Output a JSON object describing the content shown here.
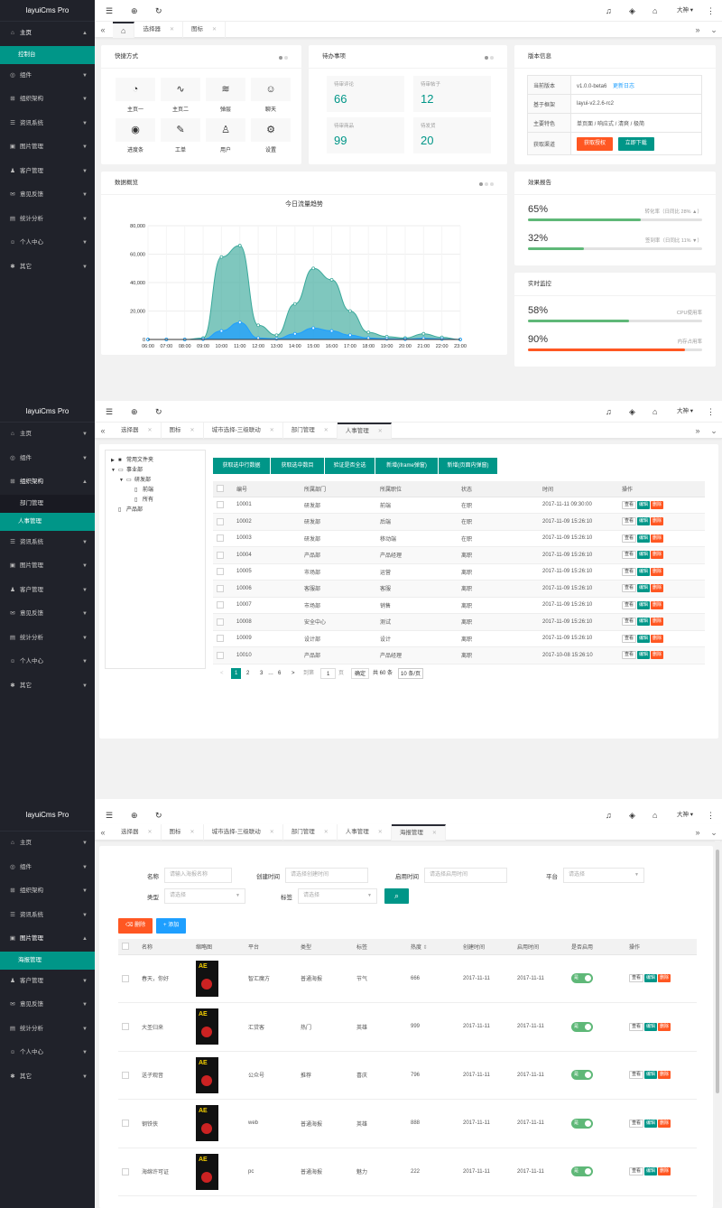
{
  "brand": "layuiCms Pro",
  "header": {
    "user": "大神"
  },
  "f1": {
    "sidebar": [
      {
        "label": "主页",
        "icon": "home-icon",
        "open": true,
        "sub": [
          {
            "label": "控制台",
            "active": true
          }
        ]
      },
      {
        "label": "组件",
        "icon": "component-icon"
      },
      {
        "label": "组织架构",
        "icon": "org-icon"
      },
      {
        "label": "资讯系统",
        "icon": "news-icon"
      },
      {
        "label": "图片管理",
        "icon": "image-icon"
      },
      {
        "label": "客户管理",
        "icon": "customer-icon"
      },
      {
        "label": "意见反馈",
        "icon": "feedback-icon"
      },
      {
        "label": "统计分析",
        "icon": "stats-icon"
      },
      {
        "label": "个人中心",
        "icon": "user-icon"
      },
      {
        "label": "其它",
        "icon": "other-icon"
      }
    ],
    "tabs": [
      {
        "label": "",
        "home": true,
        "active": true
      },
      {
        "label": "选择器"
      },
      {
        "label": "图标"
      }
    ],
    "quick": {
      "title": "快捷方式",
      "items": [
        {
          "label": "主页一",
          "icon": "gauge-icon",
          "glyph": "◔"
        },
        {
          "label": "主页二",
          "icon": "pulse-icon",
          "glyph": "∿"
        },
        {
          "label": "弹层",
          "icon": "layers-icon",
          "glyph": "≋"
        },
        {
          "label": "聊天",
          "icon": "smile-icon",
          "glyph": "☺"
        },
        {
          "label": "进度条",
          "icon": "compass-icon",
          "glyph": "◉"
        },
        {
          "label": "工单",
          "icon": "edit-icon",
          "glyph": "✎"
        },
        {
          "label": "用户",
          "icon": "user-icon",
          "glyph": "♙"
        },
        {
          "label": "设置",
          "icon": "gear-icon",
          "glyph": "⚙"
        }
      ]
    },
    "todo": {
      "title": "待办事项",
      "items": [
        {
          "label": "待审评论",
          "value": "66"
        },
        {
          "label": "待审帖子",
          "value": "12"
        },
        {
          "label": "待审商品",
          "value": "99"
        },
        {
          "label": "待发货",
          "value": "20"
        }
      ]
    },
    "version": {
      "title": "版本信息",
      "rows": [
        {
          "k": "当前版本",
          "v": "v1.0.0-beta6",
          "link": "更新日志"
        },
        {
          "k": "基于框架",
          "v": "layui-v2.2.6-rc2"
        },
        {
          "k": "主要特色",
          "v": "单页面 / 响应式 / 清爽 / 极简"
        },
        {
          "k": "获取渠道"
        }
      ],
      "btn_auth": "获取授权",
      "btn_dl": "立即下载"
    },
    "chart_card_title": "数据概览",
    "chart_data": {
      "type": "area",
      "title": "今日流量趋势",
      "categories": [
        "06:00",
        "07:00",
        "08:00",
        "09:00",
        "10:00",
        "11:00",
        "12:00",
        "13:00",
        "14:00",
        "15:00",
        "16:00",
        "17:00",
        "18:00",
        "19:00",
        "20:00",
        "21:00",
        "22:00",
        "23:00"
      ],
      "yticks": [
        "0",
        "20,000",
        "40,000",
        "60,000",
        "80,000"
      ],
      "ylim": [
        0,
        80000
      ],
      "series": [
        {
          "values": [
            0,
            0,
            0,
            1000,
            58000,
            66000,
            10000,
            3000,
            25000,
            50000,
            42000,
            20000,
            5000,
            2000,
            1000,
            4000,
            1500,
            0
          ],
          "color": "#3aa99b"
        },
        {
          "values": [
            0,
            0,
            0,
            200,
            6000,
            12000,
            1000,
            500,
            4000,
            8000,
            6000,
            3000,
            1000,
            500,
            200,
            800,
            300,
            0
          ],
          "color": "#1e9fff"
        }
      ]
    },
    "effect": {
      "title": "效果报告",
      "items": [
        {
          "pct": "65%",
          "fill": 65,
          "label": "转化率（日同比 28% ▲）",
          "color": "#5fb878"
        },
        {
          "pct": "32%",
          "fill": 32,
          "label": "签到率（日同比 11% ▼）",
          "color": "#5fb878"
        }
      ]
    },
    "monitor": {
      "title": "实时监控",
      "items": [
        {
          "pct": "58%",
          "fill": 58,
          "label": "CPU使用率",
          "color": "#5fb878"
        },
        {
          "pct": "90%",
          "fill": 90,
          "label": "内存占用率",
          "color": "#ff5722"
        }
      ]
    }
  },
  "f2": {
    "sidebar": [
      {
        "label": "主页",
        "icon": "home-icon"
      },
      {
        "label": "组件",
        "icon": "component-icon"
      },
      {
        "label": "组织架构",
        "icon": "org-icon",
        "open": true,
        "sub": [
          {
            "label": "部门管理"
          },
          {
            "label": "人事管理",
            "active": true
          }
        ]
      },
      {
        "label": "资讯系统",
        "icon": "news-icon"
      },
      {
        "label": "图片管理",
        "icon": "image-icon"
      },
      {
        "label": "客户管理",
        "icon": "customer-icon"
      },
      {
        "label": "意见反馈",
        "icon": "feedback-icon"
      },
      {
        "label": "统计分析",
        "icon": "stats-icon"
      },
      {
        "label": "个人中心",
        "icon": "user-icon"
      },
      {
        "label": "其它",
        "icon": "other-icon"
      }
    ],
    "tabs": [
      {
        "label": "选择器"
      },
      {
        "label": "图标"
      },
      {
        "label": "城市选择-三级联动"
      },
      {
        "label": "部门管理"
      },
      {
        "label": "人事管理",
        "active": true
      }
    ],
    "tree": [
      {
        "label": "常用文件夹",
        "lvl": 0,
        "arrow": "▶",
        "glyph": "■"
      },
      {
        "label": "事业部",
        "lvl": 0,
        "arrow": "▼",
        "glyph": "▭"
      },
      {
        "label": "研发部",
        "lvl": 1,
        "arrow": "▼",
        "glyph": "▭"
      },
      {
        "label": "前端",
        "lvl": 2,
        "arrow": "",
        "glyph": "▯"
      },
      {
        "label": "所有",
        "lvl": 2,
        "arrow": "",
        "glyph": "▯"
      },
      {
        "label": "产品部",
        "lvl": 0,
        "arrow": "",
        "glyph": "▯"
      }
    ],
    "buttons": [
      "获取选中行数据",
      "获取选中数目",
      "验证是否全选",
      "新增(iframe弹窗)",
      "新增(页面内弹窗)"
    ],
    "columns": [
      "编号",
      "所属部门",
      "所属职位",
      "状态",
      "时间",
      "操作"
    ],
    "rows": [
      [
        "10001",
        "研发部",
        "前端",
        "在职",
        "2017-11-11 09:30:00"
      ],
      [
        "10002",
        "研发部",
        "后端",
        "在职",
        "2017-11-09 15:26:10"
      ],
      [
        "10003",
        "研发部",
        "移动端",
        "在职",
        "2017-11-09 15:26:10"
      ],
      [
        "10004",
        "产品部",
        "产品经理",
        "离职",
        "2017-11-09 15:26:10"
      ],
      [
        "10005",
        "市场部",
        "运营",
        "离职",
        "2017-11-09 15:26:10"
      ],
      [
        "10006",
        "客服部",
        "客服",
        "离职",
        "2017-11-09 15:26:10"
      ],
      [
        "10007",
        "市场部",
        "销售",
        "离职",
        "2017-11-09 15:26:10"
      ],
      [
        "10008",
        "安全中心",
        "测试",
        "离职",
        "2017-11-09 15:26:10"
      ],
      [
        "10009",
        "设计部",
        "设计",
        "离职",
        "2017-11-09 15:26:10"
      ],
      [
        "10010",
        "产品部",
        "产品经理",
        "离职",
        "2017-10-08 15:26:10"
      ]
    ],
    "actions": [
      "查看",
      "编辑",
      "删除"
    ],
    "pager": {
      "pages": [
        "1",
        "2",
        "3",
        "…",
        "6"
      ],
      "goto": "到第",
      "page_val": "1",
      "page_unit": "页",
      "confirm": "确定",
      "total": "共 60 条",
      "size": "10 条/页"
    }
  },
  "f3": {
    "sidebar": [
      {
        "label": "主页",
        "icon": "home-icon"
      },
      {
        "label": "组件",
        "icon": "component-icon"
      },
      {
        "label": "组织架构",
        "icon": "org-icon"
      },
      {
        "label": "资讯系统",
        "icon": "news-icon"
      },
      {
        "label": "图片管理",
        "icon": "image-icon",
        "open": true,
        "sub": [
          {
            "label": "海报管理",
            "active": true
          }
        ]
      },
      {
        "label": "客户管理",
        "icon": "customer-icon"
      },
      {
        "label": "意见反馈",
        "icon": "feedback-icon"
      },
      {
        "label": "统计分析",
        "icon": "stats-icon"
      },
      {
        "label": "个人中心",
        "icon": "user-icon"
      },
      {
        "label": "其它",
        "icon": "other-icon"
      }
    ],
    "tabs": [
      {
        "label": "选择器"
      },
      {
        "label": "图标"
      },
      {
        "label": "城市选择-三级联动"
      },
      {
        "label": "部门管理"
      },
      {
        "label": "人事管理"
      },
      {
        "label": "海报管理",
        "active": true
      }
    ],
    "filters": {
      "name_label": "名称",
      "name_ph": "请输入海报名称",
      "create_label": "创建时间",
      "create_ph": "请选择创建时间",
      "enable_label": "启用时间",
      "enable_ph": "请选择启用时间",
      "platform_label": "平台",
      "platform_ph": "请选择",
      "type_label": "类型",
      "type_ph": "请选择",
      "tag_label": "标签",
      "tag_ph": "请选择"
    },
    "btn_del": "删除",
    "btn_add": "添加",
    "columns": [
      "名称",
      "缩略图",
      "平台",
      "类型",
      "标签",
      "热度",
      "创建时间",
      "启用时间",
      "是否启用",
      "操作"
    ],
    "rows": [
      [
        "春天，你好",
        "智汇魔方",
        "普通海报",
        "节气",
        "666",
        "2017-11-11",
        "2017-11-11"
      ],
      [
        "大圣归来",
        "汇贷客",
        "热门",
        "英雄",
        "999",
        "2017-11-11",
        "2017-11-11"
      ],
      [
        "送子观音",
        "公众号",
        "推荐",
        "喜庆",
        "796",
        "2017-11-11",
        "2017-11-11"
      ],
      [
        "钢铁侠",
        "web",
        "普通海报",
        "英雄",
        "888",
        "2017-11-11",
        "2017-11-11"
      ],
      [
        "海绵许可证",
        "pc",
        "普通海报",
        "魅力",
        "222",
        "2017-11-11",
        "2017-11-11"
      ]
    ],
    "switch_label": "是",
    "thumb_text": "AE",
    "actions": [
      "查看",
      "编辑",
      "删除"
    ]
  }
}
